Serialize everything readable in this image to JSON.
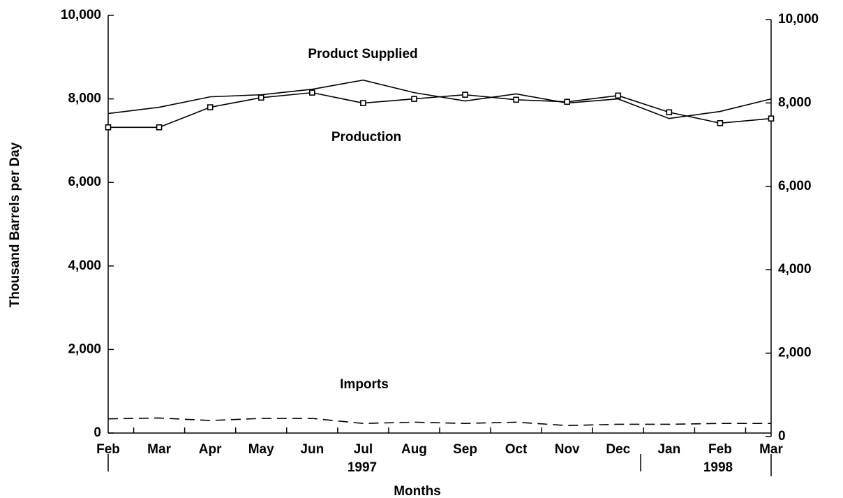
{
  "chart_data": {
    "type": "line",
    "x_label": "Months",
    "y_label": "Thousand Barrels per Day",
    "categories": [
      "Feb",
      "Mar",
      "Apr",
      "May",
      "Jun",
      "Jul",
      "Aug",
      "Sep",
      "Oct",
      "Nov",
      "Dec",
      "Jan",
      "Feb",
      "Mar"
    ],
    "years": [
      "1997",
      "1998"
    ],
    "series": [
      {
        "name": "Product Supplied",
        "color": "#000000",
        "style": "solid",
        "marker": "none",
        "values": [
          7650,
          7800,
          8050,
          8100,
          8230,
          8450,
          8150,
          7950,
          8120,
          7900,
          8000,
          7530,
          7700,
          8000
        ]
      },
      {
        "name": "Production",
        "color": "#000000",
        "style": "solid",
        "marker": "square",
        "values": [
          7320,
          7320,
          7800,
          8030,
          8150,
          7900,
          8000,
          8100,
          7980,
          7930,
          8080,
          7680,
          7420,
          7530
        ]
      },
      {
        "name": "Imports",
        "color": "#000000",
        "style": "dashed",
        "marker": "none",
        "values": [
          340,
          360,
          300,
          350,
          350,
          230,
          260,
          230,
          260,
          180,
          210,
          210,
          230,
          230
        ]
      }
    ],
    "ylim": [
      0,
      10000
    ],
    "yticks": [
      0,
      {
        "value": 2000,
        "label": "2,000"
      },
      {
        "value": 4000,
        "label": "4,000"
      },
      {
        "value": 6000,
        "label": "6,000"
      },
      {
        "value": 8000,
        "label": "8,000"
      },
      {
        "value": 10000,
        "label": "10,000"
      }
    ],
    "y2lim": [
      0,
      10000
    ],
    "y2ticks": [
      0,
      {
        "value": 2000,
        "label": "2,000"
      },
      {
        "value": 4000,
        "label": "4,000"
      },
      {
        "value": 6000,
        "label": "6,000"
      },
      {
        "value": 8000,
        "label": "8,000"
      },
      {
        "value": 10000,
        "label": "10,000"
      }
    ],
    "grid": false
  }
}
